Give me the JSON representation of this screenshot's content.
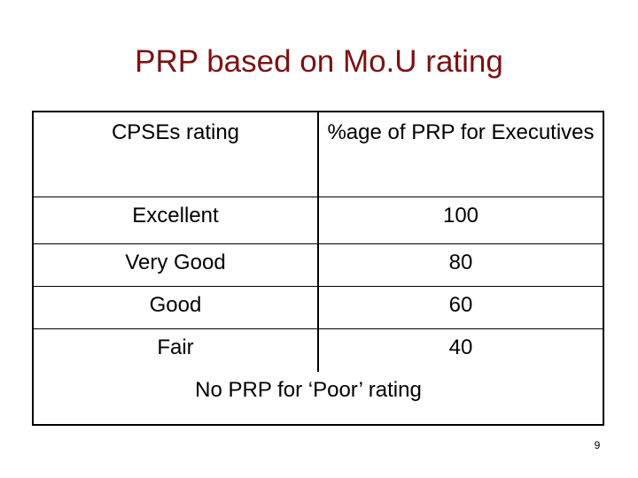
{
  "slide": {
    "title": "PRP based on Mo.U rating",
    "page_number": "9"
  },
  "table": {
    "headers": [
      "CPSEs rating",
      "%age of PRP for Executives"
    ],
    "rows": [
      {
        "rating": "Excellent",
        "percent": "100"
      },
      {
        "rating": "Very Good",
        "percent": "80"
      },
      {
        "rating": "Good",
        "percent": "60"
      },
      {
        "rating": "Fair",
        "percent": "40"
      }
    ],
    "footnote": "No PRP for ‘Poor’ rating"
  }
}
